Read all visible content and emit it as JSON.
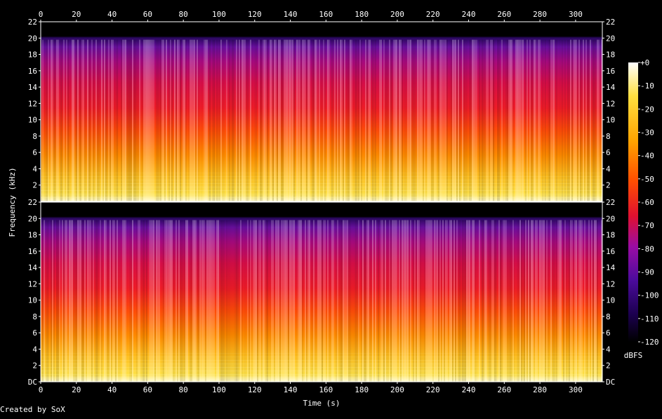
{
  "chart_data": {
    "type": "heatmap",
    "title": "",
    "xlabel": "Time (s)",
    "ylabel": "Frequency (kHz)",
    "xlim": [
      0,
      315
    ],
    "x_ticks": [
      "0",
      "20",
      "40",
      "60",
      "80",
      "100",
      "120",
      "140",
      "160",
      "180",
      "200",
      "220",
      "240",
      "260",
      "280",
      "300"
    ],
    "channels": [
      {
        "name": "",
        "ylim": [
          0,
          22
        ],
        "y_ticks": [
          "22",
          "20",
          "18",
          "16",
          "14",
          "12",
          "10",
          "8",
          "6",
          "4",
          "2"
        ]
      },
      {
        "name": "",
        "ylim": [
          0,
          22
        ],
        "y_ticks": [
          "22",
          "20",
          "18",
          "16",
          "14",
          "12",
          "10",
          "8",
          "6",
          "4",
          "2",
          "DC"
        ]
      }
    ],
    "colorbar": {
      "label": "dBFS",
      "range": [
        -120,
        0
      ],
      "ticks": [
        "+0",
        "-10",
        "-20",
        "-30",
        "-40",
        "-50",
        "-60",
        "-70",
        "-80",
        "-90",
        "-100",
        "-110",
        "-120"
      ],
      "colors": [
        "#000000",
        "#1c0050",
        "#4b0b9c",
        "#9a0ca4",
        "#e01030",
        "#ff5000",
        "#ffa400",
        "#ffe040",
        "#ffffff"
      ]
    },
    "grid": false
  },
  "footer": {
    "credit": "Created by SoX"
  }
}
